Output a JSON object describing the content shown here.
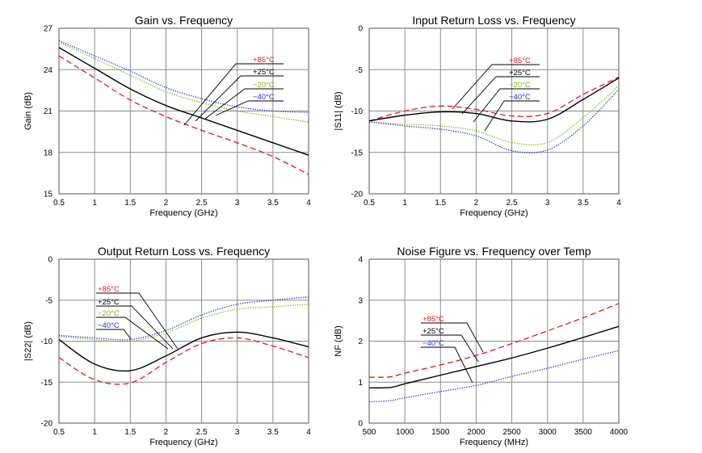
{
  "chart_data": [
    {
      "id": "gain",
      "type": "line",
      "title": "Gain vs. Frequency",
      "xlabel": "Frequency (GHz)",
      "ylabel": "Gain (dB)",
      "xlim": [
        0.5,
        4
      ],
      "ylim": [
        15,
        27
      ],
      "xticks": [
        0.5,
        1,
        1.5,
        2,
        2.5,
        3,
        3.5,
        4
      ],
      "yticks": [
        15,
        18,
        21,
        24,
        27
      ],
      "xtick_labels": [
        "0.5",
        "1",
        "1.5",
        "2",
        "2.5",
        "3",
        "3.5",
        "4"
      ],
      "ytick_labels": [
        "15",
        "18",
        "21",
        "24",
        "27"
      ],
      "grid": true,
      "series": [
        {
          "name": "+85°C",
          "color": "#e8141c",
          "style": "dashed",
          "x": [
            0.5,
            1,
            1.5,
            2,
            2.5,
            3,
            3.5,
            4
          ],
          "y": [
            25.0,
            23.4,
            21.8,
            20.6,
            19.6,
            18.7,
            17.7,
            16.4
          ]
        },
        {
          "name": "+25°C",
          "color": "#000000",
          "style": "solid",
          "x": [
            0.5,
            1,
            1.5,
            2,
            2.5,
            3,
            3.5,
            4
          ],
          "y": [
            25.6,
            24.1,
            22.6,
            21.4,
            20.5,
            19.6,
            18.7,
            17.8
          ]
        },
        {
          "name": "-20°C",
          "color": "#7cb518",
          "style": "dotted",
          "x": [
            0.5,
            1,
            1.5,
            2,
            2.5,
            3,
            3.5,
            4
          ],
          "y": [
            26.0,
            24.8,
            23.6,
            22.4,
            21.6,
            21.0,
            20.6,
            20.2
          ]
        },
        {
          "name": "-40°C",
          "color": "#1f2fd6",
          "style": "dotted",
          "x": [
            0.5,
            1,
            1.5,
            2,
            2.5,
            3,
            3.5,
            4
          ],
          "y": [
            26.1,
            25.0,
            23.9,
            22.7,
            21.9,
            21.3,
            21.0,
            20.9
          ]
        }
      ],
      "legend": {
        "position": "top-right",
        "labels": [
          "+85°C",
          "+25°C",
          "−20°C",
          "−40°C"
        ]
      }
    },
    {
      "id": "s11",
      "type": "line",
      "title": "Input Return Loss vs. Frequency",
      "xlabel": "Frequency (GHz)",
      "ylabel": "|S11| (dB)",
      "xlim": [
        0.5,
        4
      ],
      "ylim": [
        -20,
        0
      ],
      "xticks": [
        0.5,
        1,
        1.5,
        2,
        2.5,
        3,
        3.5,
        4
      ],
      "yticks": [
        -20,
        -15,
        -10,
        -5,
        0
      ],
      "xtick_labels": [
        "0.5",
        "1",
        "1.5",
        "2",
        "2.5",
        "3",
        "3.5",
        "4"
      ],
      "ytick_labels": [
        "-20",
        "-15",
        "-10",
        "-5",
        "0"
      ],
      "grid": true,
      "series": [
        {
          "name": "+85°C",
          "color": "#e8141c",
          "style": "dashed",
          "x": [
            0.5,
            1,
            1.5,
            2,
            2.5,
            3,
            3.5,
            4
          ],
          "y": [
            -11.2,
            -10.0,
            -9.4,
            -9.8,
            -10.6,
            -10.3,
            -8.0,
            -5.9
          ]
        },
        {
          "name": "+25°C",
          "color": "#000000",
          "style": "solid",
          "x": [
            0.5,
            1,
            1.5,
            2,
            2.5,
            3,
            3.5,
            4
          ],
          "y": [
            -11.2,
            -10.5,
            -10.1,
            -10.3,
            -11.2,
            -11.0,
            -8.6,
            -6.0
          ]
        },
        {
          "name": "-20°C",
          "color": "#7cb518",
          "style": "dotted",
          "x": [
            0.5,
            1,
            1.5,
            2,
            2.5,
            3,
            3.5,
            4
          ],
          "y": [
            -11.3,
            -11.6,
            -11.8,
            -12.4,
            -13.8,
            -13.8,
            -10.8,
            -6.9
          ]
        },
        {
          "name": "-40°C",
          "color": "#1f2fd6",
          "style": "dotted",
          "x": [
            0.5,
            1,
            1.5,
            2,
            2.5,
            3,
            3.5,
            4
          ],
          "y": [
            -11.3,
            -11.8,
            -12.2,
            -13.0,
            -14.8,
            -14.7,
            -11.8,
            -7.4
          ]
        }
      ],
      "legend": {
        "position": "top-right",
        "labels": [
          "+85°C",
          "+25°C",
          "−20°C",
          "−40°C"
        ]
      }
    },
    {
      "id": "s22",
      "type": "line",
      "title": "Output Return Loss vs. Frequency",
      "xlabel": "Frequency (GHz)",
      "ylabel": "|S22| (dB)",
      "xlim": [
        0.5,
        4
      ],
      "ylim": [
        -20,
        0
      ],
      "xticks": [
        0.5,
        1,
        1.5,
        2,
        2.5,
        3,
        3.5,
        4
      ],
      "yticks": [
        -20,
        -15,
        -10,
        -5,
        0
      ],
      "xtick_labels": [
        "0.5",
        "1",
        "1.5",
        "2",
        "2.5",
        "3",
        "3.5",
        "4"
      ],
      "ytick_labels": [
        "-20",
        "-15",
        "-10",
        "-5",
        "0"
      ],
      "grid": true,
      "series": [
        {
          "name": "+85°C",
          "color": "#e8141c",
          "style": "dashed",
          "x": [
            0.5,
            1,
            1.5,
            2,
            2.5,
            3,
            3.5,
            4
          ],
          "y": [
            -12.0,
            -14.7,
            -15.1,
            -12.6,
            -10.3,
            -9.6,
            -10.6,
            -12.0
          ]
        },
        {
          "name": "+25°C",
          "color": "#000000",
          "style": "solid",
          "x": [
            0.5,
            1,
            1.5,
            2,
            2.5,
            3,
            3.5,
            4
          ],
          "y": [
            -9.8,
            -12.8,
            -13.6,
            -11.8,
            -9.6,
            -8.9,
            -9.6,
            -10.7
          ]
        },
        {
          "name": "-20°C",
          "color": "#7cb518",
          "style": "dotted",
          "x": [
            0.5,
            1,
            1.5,
            2,
            2.5,
            3,
            3.5,
            4
          ],
          "y": [
            -9.4,
            -9.8,
            -10.0,
            -9.0,
            -7.2,
            -6.1,
            -5.8,
            -5.5
          ]
        },
        {
          "name": "-40°C",
          "color": "#1f2fd6",
          "style": "dotted",
          "x": [
            0.5,
            1,
            1.5,
            2,
            2.5,
            3,
            3.5,
            4
          ],
          "y": [
            -9.3,
            -9.6,
            -9.8,
            -8.7,
            -6.8,
            -5.5,
            -5.0,
            -4.6
          ]
        }
      ],
      "legend": {
        "position": "top-left",
        "labels": [
          "+85°C",
          "+25°C",
          "−20°C",
          "−40°C"
        ]
      }
    },
    {
      "id": "nf",
      "type": "line",
      "title": "Noise Figure vs. Frequency over Temp",
      "xlabel": "Frequency (MHz)",
      "ylabel": "NF (dB)",
      "xlim": [
        500,
        4000
      ],
      "ylim": [
        0,
        4
      ],
      "xticks": [
        500,
        1000,
        1500,
        2000,
        2500,
        3000,
        3500,
        4000
      ],
      "yticks": [
        0,
        1,
        2,
        3,
        4
      ],
      "xtick_labels": [
        "500",
        "1000",
        "1500",
        "2000",
        "2500",
        "3000",
        "3500",
        "4000"
      ],
      "ytick_labels": [
        "0",
        "1",
        "2",
        "3",
        "4"
      ],
      "grid": true,
      "series": [
        {
          "name": "+85°C",
          "color": "#e8141c",
          "style": "dashed",
          "x": [
            500,
            800,
            1000,
            1500,
            2000,
            2500,
            3000,
            3500,
            4000
          ],
          "y": [
            1.12,
            1.13,
            1.22,
            1.42,
            1.65,
            1.94,
            2.25,
            2.57,
            2.92
          ]
        },
        {
          "name": "+25°C",
          "color": "#000000",
          "style": "solid",
          "x": [
            500,
            800,
            1000,
            1500,
            2000,
            2500,
            3000,
            3500,
            4000
          ],
          "y": [
            0.86,
            0.87,
            0.96,
            1.17,
            1.38,
            1.59,
            1.83,
            2.09,
            2.36
          ]
        },
        {
          "name": "-40°C",
          "color": "#1f2fd6",
          "style": "dotted",
          "x": [
            500,
            800,
            1000,
            1500,
            2000,
            2500,
            3000,
            3500,
            4000
          ],
          "y": [
            0.52,
            0.55,
            0.62,
            0.77,
            0.92,
            1.14,
            1.34,
            1.56,
            1.77
          ]
        }
      ],
      "legend": {
        "position": "left",
        "labels": [
          "+85°C",
          "+25°C",
          "−40°C"
        ]
      }
    }
  ]
}
